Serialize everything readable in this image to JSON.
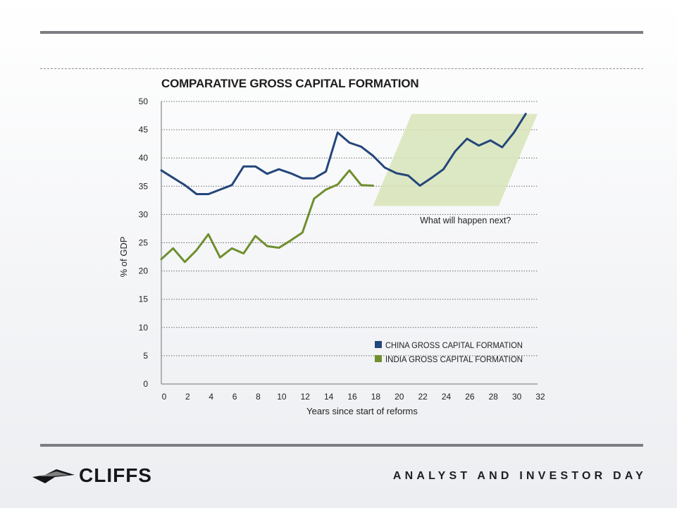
{
  "slide": {
    "event_name": "ANALYST AND INVESTOR DAY",
    "logo_text": "CLIFFS"
  },
  "colors": {
    "china": "#24467a",
    "india": "#6f8f2e",
    "projection_fill": "#d7e4b8",
    "grid": "#6a6a6a",
    "rule": "#7b7d83"
  },
  "chart_data": {
    "type": "line",
    "title": "COMPARATIVE GROSS CAPITAL FORMATION",
    "xlabel": "Years since start of reforms",
    "ylabel": "% of GDP",
    "xlim": [
      0,
      32
    ],
    "ylim": [
      0,
      50
    ],
    "x_ticks": [
      0,
      2,
      4,
      6,
      8,
      10,
      12,
      14,
      16,
      18,
      20,
      22,
      24,
      26,
      28,
      30,
      32
    ],
    "y_ticks": [
      0,
      5,
      10,
      15,
      20,
      25,
      30,
      35,
      40,
      45,
      50
    ],
    "grid": true,
    "legend_position": "bottom-right",
    "annotation": "What will happen next?",
    "projection_region": {
      "x_range": [
        18,
        32
      ],
      "y_range": [
        31.5,
        47.8
      ]
    },
    "series": [
      {
        "name": "CHINA GROSS CAPITAL FORMATION",
        "x": [
          0,
          1,
          2,
          3,
          4,
          5,
          6,
          7,
          8,
          9,
          10,
          11,
          12,
          13,
          14,
          15,
          16,
          17,
          18,
          19,
          20,
          21,
          22,
          23,
          24,
          25,
          26,
          27,
          28,
          29,
          30,
          31
        ],
        "values": [
          37.8,
          36.5,
          35.2,
          33.6,
          33.6,
          34.4,
          35.2,
          38.5,
          38.5,
          37.2,
          38.0,
          37.3,
          36.4,
          36.4,
          37.6,
          44.5,
          42.7,
          42.0,
          40.4,
          38.3,
          37.3,
          36.9,
          35.1,
          36.5,
          38.0,
          41.2,
          43.4,
          42.2,
          43.1,
          41.9,
          44.5,
          47.8
        ]
      },
      {
        "name": "INDIA GROSS CAPITAL FORMATION",
        "x": [
          0,
          1,
          2,
          3,
          4,
          5,
          6,
          7,
          8,
          9,
          10,
          11,
          12,
          13,
          14,
          15,
          16,
          17,
          18
        ],
        "values": [
          22.1,
          24.0,
          21.6,
          23.7,
          26.5,
          22.4,
          24.0,
          23.1,
          26.2,
          24.4,
          24.1,
          25.4,
          26.8,
          32.8,
          34.4,
          35.3,
          37.8,
          35.2,
          35.1
        ]
      }
    ]
  }
}
